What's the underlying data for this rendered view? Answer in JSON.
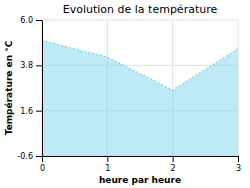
{
  "chart_data": {
    "type": "area",
    "title": "Evolution de la température",
    "xlabel": "heure par heure",
    "ylabel": "Température en °C",
    "x": [
      0,
      1,
      2,
      3
    ],
    "values": [
      5.0,
      4.2,
      2.6,
      4.6
    ],
    "xlim": [
      0,
      3
    ],
    "ylim": [
      -0.6,
      6.0
    ],
    "xticks": [
      0,
      1,
      2,
      3
    ],
    "yticks": [
      -0.6,
      1.6,
      3.8,
      {
        "value": 6.0,
        "label": "6.0"
      }
    ],
    "color": "#7dd6ed",
    "line_style": "dotted",
    "grid": true
  }
}
